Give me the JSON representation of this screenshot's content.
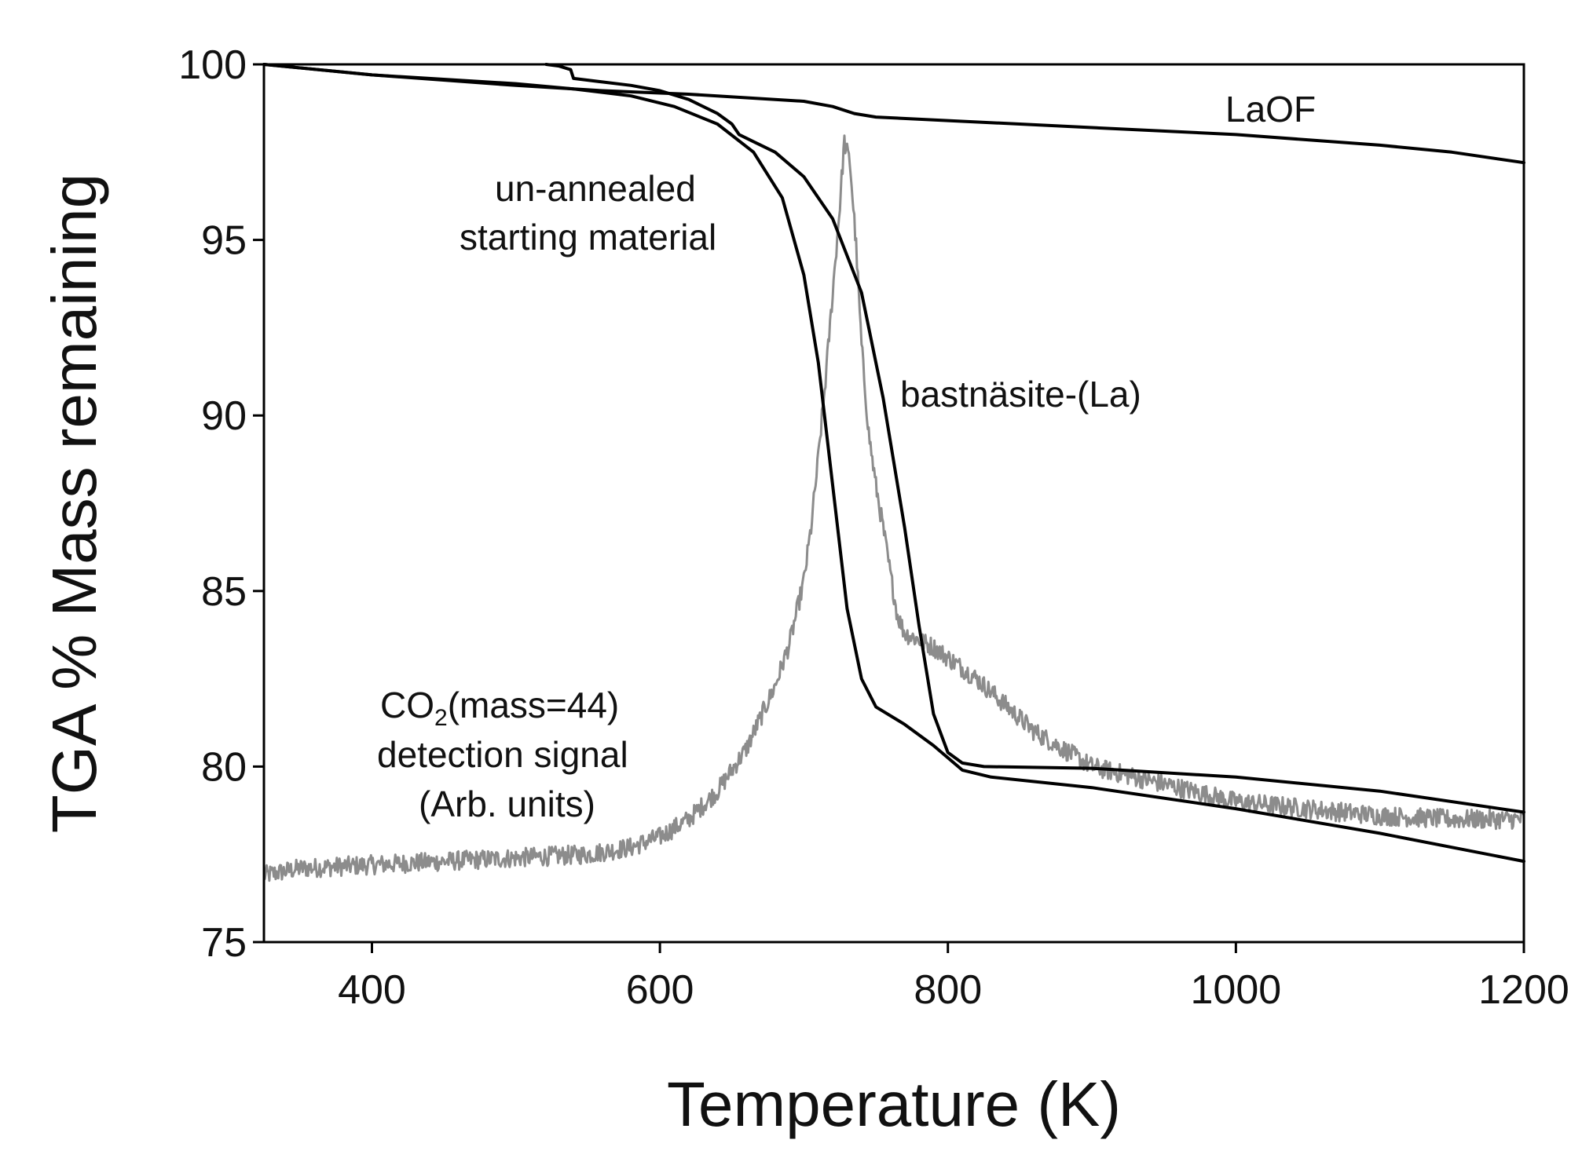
{
  "chart_data": {
    "type": "line",
    "title": "",
    "xlabel": "Temperature (K)",
    "ylabel": "TGA % Mass remaining",
    "xlim": [
      325,
      1200
    ],
    "ylim": [
      75,
      100
    ],
    "xticks": [
      400,
      600,
      800,
      1000,
      1200
    ],
    "yticks": [
      75,
      80,
      85,
      90,
      95,
      100
    ],
    "grid": false,
    "legend": "none",
    "colors": {
      "mass": "#000000",
      "signal": "#8c8c8c",
      "axis": "#000000"
    },
    "series": [
      {
        "name": "LaOF",
        "label": "LaOF",
        "color": "#000000",
        "x": [
          325,
          400,
          500,
          560,
          620,
          660,
          700,
          720,
          735,
          750,
          800,
          900,
          1000,
          1100,
          1150,
          1200
        ],
        "y": [
          100.0,
          99.7,
          99.4,
          99.25,
          99.15,
          99.05,
          98.95,
          98.8,
          98.6,
          98.5,
          98.4,
          98.2,
          98.0,
          97.7,
          97.5,
          97.2
        ]
      },
      {
        "name": "un-annealed starting material",
        "label_lines": [
          "un-annealed",
          "starting material"
        ],
        "color": "#000000",
        "x": [
          325,
          400,
          500,
          540,
          580,
          610,
          640,
          665,
          685,
          700,
          710,
          720,
          730,
          740,
          750,
          770,
          790,
          810,
          830,
          900,
          1000,
          1100,
          1200
        ],
        "y": [
          100.0,
          99.7,
          99.45,
          99.3,
          99.1,
          98.8,
          98.3,
          97.5,
          96.2,
          94.0,
          91.5,
          88.0,
          84.5,
          82.5,
          81.7,
          81.2,
          80.6,
          79.9,
          79.7,
          79.4,
          78.8,
          78.1,
          77.3
        ]
      },
      {
        "name": "bastnäsite-(La)",
        "label": "bastnäsite-(La)",
        "color": "#000000",
        "x": [
          521,
          530,
          538,
          540,
          560,
          580,
          600,
          620,
          640,
          650,
          655,
          665,
          680,
          700,
          720,
          740,
          755,
          770,
          780,
          790,
          800,
          810,
          825,
          900,
          1000,
          1100,
          1200
        ],
        "y": [
          100.0,
          99.95,
          99.85,
          99.6,
          99.5,
          99.4,
          99.25,
          99.0,
          98.6,
          98.3,
          98.0,
          97.8,
          97.5,
          96.8,
          95.6,
          93.5,
          90.5,
          86.8,
          84.0,
          81.5,
          80.4,
          80.1,
          80.0,
          79.95,
          79.7,
          79.3,
          78.7
        ]
      },
      {
        "name": "CO2 detection signal",
        "label_parts": {
          "pre": "CO",
          "sub": "2",
          "post": "(mass=44)"
        },
        "label_lines": [
          "detection signal",
          "(Arb. units)"
        ],
        "color": "#8c8c8c",
        "noisy": true,
        "x": [
          325,
          350,
          400,
          450,
          500,
          550,
          580,
          600,
          620,
          640,
          660,
          680,
          690,
          700,
          705,
          710,
          715,
          720,
          725,
          728,
          732,
          736,
          740,
          745,
          750,
          755,
          760,
          765,
          770,
          790,
          820,
          860,
          900,
          950,
          1000,
          1050,
          1100,
          1150,
          1200
        ],
        "y": [
          76.9,
          77.1,
          77.2,
          77.3,
          77.4,
          77.5,
          77.7,
          78.0,
          78.5,
          79.3,
          80.5,
          82.3,
          83.5,
          85.3,
          86.8,
          88.8,
          91.0,
          93.5,
          96.0,
          97.8,
          97.2,
          95.0,
          92.0,
          89.5,
          88.0,
          86.8,
          85.5,
          84.3,
          83.8,
          83.4,
          82.5,
          81.0,
          80.0,
          79.5,
          79.0,
          78.8,
          78.6,
          78.5,
          78.5
        ]
      }
    ]
  }
}
